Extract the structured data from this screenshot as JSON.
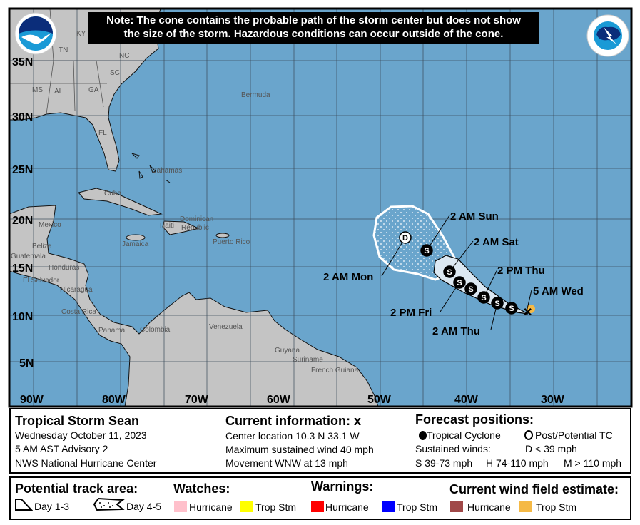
{
  "note": {
    "line1": "Note: The cone contains the probable path of the storm center but does not show",
    "line2": "the size of the storm. Hazardous conditions can occur outside of the cone."
  },
  "logos": {
    "noaa": "NOAA",
    "nws": "NATIONAL WEATHER SERVICE"
  },
  "map": {
    "lat_labels": [
      "35N",
      "30N",
      "25N",
      "20N",
      "15N",
      "10N",
      "5N"
    ],
    "lon_labels": [
      "90W",
      "80W",
      "70W",
      "60W",
      "50W",
      "40W",
      "30W"
    ],
    "places": {
      "tn": "TN",
      "ky": "KY",
      "nc": "NC",
      "sc": "SC",
      "ms": "MS",
      "al": "AL",
      "ga": "GA",
      "fl": "FL",
      "bermuda": "Bermuda",
      "bahamas": "Bahamas",
      "cuba": "Cuba",
      "mexico": "Mexico",
      "belize": "Belize",
      "guatemala": "Guatemala",
      "honduras": "Honduras",
      "el_salvador": "El Salvador",
      "nicaragua": "Nicaragua",
      "costa_rica": "Costa Rica",
      "panama": "Panama",
      "colombia": "Colombia",
      "venezuela": "Venezuela",
      "guyana": "Guyana",
      "suriname": "Suriname",
      "french_guiana": "French Guiana",
      "jamaica": "Jamaica",
      "haiti": "Haiti",
      "dominican": "Dominican",
      "republic": "Republic",
      "puerto_rico": "Puerto Rico"
    },
    "forecast_labels": {
      "wed5am": "5 AM Wed",
      "thu2am": "2 AM Thu",
      "thu2pm": "2 PM Thu",
      "fri2pm": "2 PM Fri",
      "sat2am": "2 AM Sat",
      "sun2am": "2 AM Sun",
      "mon2am": "2 AM Mon"
    },
    "markers": {
      "storm": "S",
      "depression": "D"
    },
    "colors": {
      "ocean": "#6aa5cc",
      "land": "#c4c4c4",
      "cone_day13": "#dce8f2",
      "wind_trop_stm": "#f5b945"
    }
  },
  "info": {
    "storm_name": "Tropical Storm Sean",
    "date": "Wednesday October 11, 2023",
    "advisory": "5 AM AST Advisory 2",
    "center": "NWS National Hurricane Center",
    "current_title": "Current information:",
    "current_icon": "x",
    "location": "Center location 10.3 N 33.1 W",
    "max_wind": "Maximum sustained wind 40 mph",
    "movement": "Movement WNW at 13 mph",
    "forecast_title": "Forecast positions:",
    "tc": "Tropical Cyclone",
    "post_tc": "Post/Potential TC",
    "sustained": "Sustained winds:",
    "d_range": "D < 39 mph",
    "s_range": "S 39-73 mph",
    "h_range": "H 74-110 mph",
    "m_range": "M > 110 mph"
  },
  "legend": {
    "track_title": "Potential track area:",
    "day13": "Day 1-3",
    "day45": "Day 4-5",
    "watches_title": "Watches:",
    "warnings_title": "Warnings:",
    "wind_title": "Current wind field estimate:",
    "hurricane": "Hurricane",
    "trop_stm": "Trop Stm",
    "colors": {
      "watch_hurricane": "#ffc0cb",
      "watch_trop": "#ffff00",
      "warn_hurricane": "#ff0000",
      "warn_trop": "#0000ff",
      "wind_hurricane": "#a04848",
      "wind_trop": "#f5b945"
    }
  }
}
